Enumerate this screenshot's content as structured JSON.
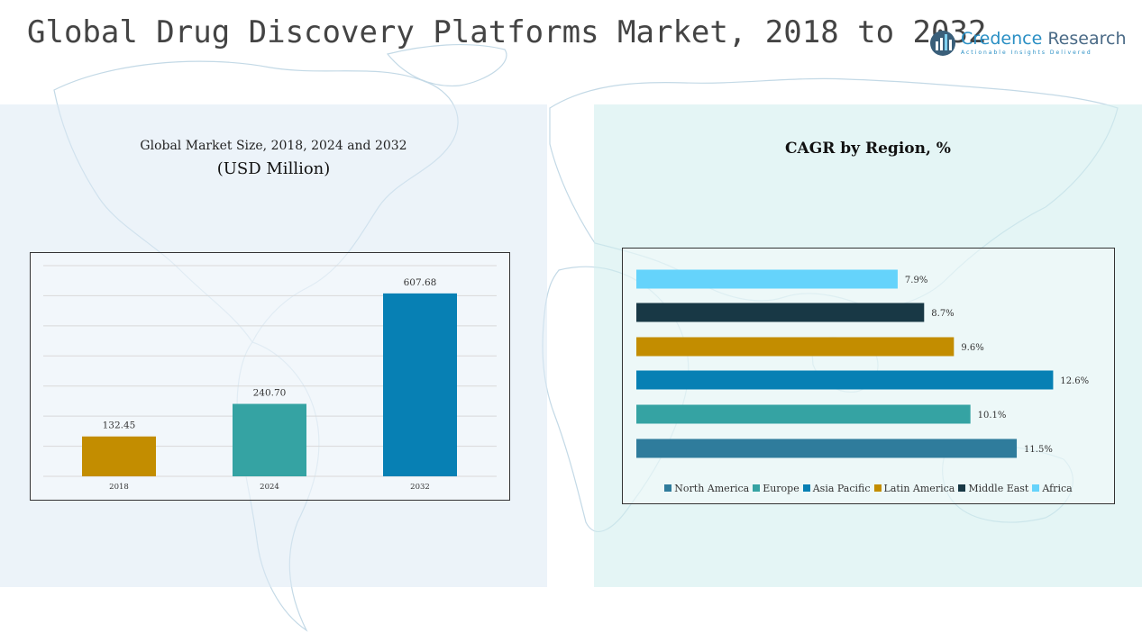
{
  "header": {
    "title": "Global Drug Discovery Platforms Market, 2018 to 2032",
    "logo": {
      "name_part1": "Credence",
      "name_part2": "Research",
      "tagline": "Actionable Insights Delivered"
    }
  },
  "left_panel": {
    "title": "Global Market Size, 2018, 2024 and 2032",
    "subtitle": "(USD Million)"
  },
  "right_panel": {
    "title": "CAGR by Region, %"
  },
  "colors": {
    "north_america": "#2f7c9c",
    "europe": "#35a3a3",
    "asia_pacific": "#0780b4",
    "latin_america": "#c38d00",
    "middle_east": "#183845",
    "africa": "#65d3fb"
  },
  "chart_data": [
    {
      "type": "bar",
      "title": "Global Market Size, 2018, 2024 and 2032",
      "subtitle": "(USD Million)",
      "categories": [
        "2018",
        "2024",
        "2032"
      ],
      "values": [
        132.45,
        240.7,
        607.68
      ],
      "value_labels": [
        "132.45",
        "240.70",
        "607.68"
      ],
      "colors": [
        "#c38d00",
        "#35a3a3",
        "#0780b4"
      ],
      "ylim": [
        0,
        700
      ],
      "grid": true
    },
    {
      "type": "bar",
      "orientation": "horizontal",
      "title": "CAGR by Region, %",
      "categories": [
        "North America",
        "Europe",
        "Asia Pacific",
        "Latin America",
        "Middle East",
        "Africa"
      ],
      "values": [
        11.5,
        10.1,
        12.6,
        9.6,
        8.7,
        7.9
      ],
      "value_labels": [
        "11.5%",
        "10.1%",
        "12.6%",
        "9.6%",
        "8.7%",
        "7.9%"
      ],
      "colors": [
        "#2f7c9c",
        "#35a3a3",
        "#0780b4",
        "#c38d00",
        "#183845",
        "#65d3fb"
      ],
      "xlim": [
        0,
        15
      ],
      "legend": "bottom"
    }
  ]
}
